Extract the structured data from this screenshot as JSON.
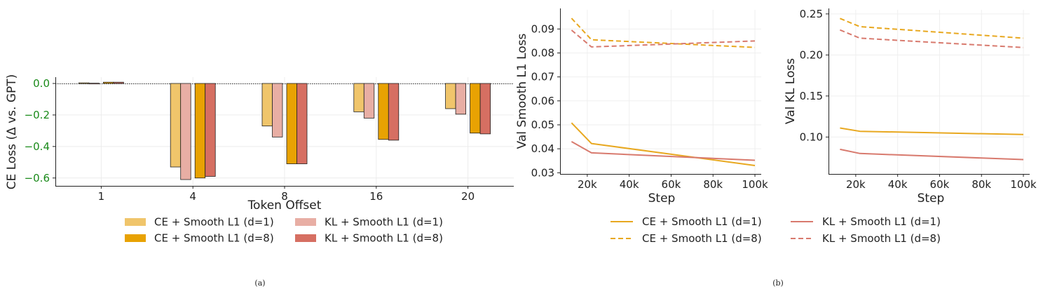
{
  "chart_data": [
    {
      "type": "bar",
      "caption": "(a)",
      "xlabel": "Token Offset",
      "ylabel": "CE Loss (Δ vs. GPT)",
      "categories": [
        "1",
        "4",
        "8",
        "16",
        "20"
      ],
      "ylim": [
        -0.65,
        0.04
      ],
      "yticks": [
        0.0,
        -0.2,
        -0.4,
        -0.6
      ],
      "ytick_labels": [
        "0.0",
        "−0.2",
        "−0.4",
        "−0.6"
      ],
      "reference_line": 0,
      "grid": true,
      "legend_position": "bottom",
      "series": [
        {
          "name": "CE + Smooth L1 (d=1)",
          "color": "#f0c56b",
          "values": [
            0.004,
            -0.53,
            -0.27,
            -0.18,
            -0.16
          ]
        },
        {
          "name": "KL + Smooth L1 (d=1)",
          "color": "#e8aea4",
          "values": [
            0.002,
            -0.61,
            -0.34,
            -0.22,
            -0.195
          ]
        },
        {
          "name": "CE + Smooth L1 (d=8)",
          "color": "#e8a203",
          "values": [
            0.008,
            -0.6,
            -0.51,
            -0.355,
            -0.315
          ]
        },
        {
          "name": "KL + Smooth L1 (d=8)",
          "color": "#d66f62",
          "values": [
            0.008,
            -0.59,
            -0.51,
            -0.36,
            -0.32
          ]
        }
      ]
    },
    {
      "type": "line",
      "caption": "(b)",
      "panels": [
        {
          "xlabel": "Step",
          "ylabel": "Val Smooth L1 Loss",
          "xlim": [
            7000,
            103000
          ],
          "ylim": [
            0.0295,
            0.098
          ],
          "xticks": [
            20000,
            40000,
            60000,
            80000,
            100000
          ],
          "xtick_labels": [
            "20k",
            "40k",
            "60k",
            "80k",
            "100k"
          ],
          "yticks": [
            0.03,
            0.04,
            0.05,
            0.06,
            0.07,
            0.08,
            0.09
          ],
          "ytick_labels": [
            "0.03",
            "0.04",
            "0.05",
            "0.06",
            "0.07",
            "0.08",
            "0.09"
          ],
          "grid": true,
          "series": [
            {
              "name": "CE + Smooth L1 (d=1)",
              "color": "#e8a820",
              "dash": false,
              "x": [
                12500,
                22000,
                100000
              ],
              "y": [
                0.0508,
                0.0422,
                0.033
              ]
            },
            {
              "name": "KL + Smooth L1 (d=1)",
              "color": "#d87a6e",
              "dash": false,
              "x": [
                12500,
                22000,
                100000
              ],
              "y": [
                0.043,
                0.0383,
                0.0352
              ]
            },
            {
              "name": "CE + Smooth L1 (d=8)",
              "color": "#e8a820",
              "dash": true,
              "x": [
                12500,
                22000,
                100000
              ],
              "y": [
                0.0945,
                0.0855,
                0.0823
              ]
            },
            {
              "name": "KL + Smooth L1 (d=8)",
              "color": "#d87a6e",
              "dash": true,
              "x": [
                12500,
                22000,
                100000
              ],
              "y": [
                0.0895,
                0.0825,
                0.085
              ]
            }
          ]
        },
        {
          "xlabel": "Step",
          "ylabel": "Val KL Loss",
          "xlim": [
            7000,
            103000
          ],
          "ylim": [
            0.055,
            0.255
          ],
          "xticks": [
            20000,
            40000,
            60000,
            80000,
            100000
          ],
          "xtick_labels": [
            "20k",
            "40k",
            "60k",
            "80k",
            "100k"
          ],
          "yticks": [
            0.1,
            0.15,
            0.2,
            0.25
          ],
          "ytick_labels": [
            "0.10",
            "0.15",
            "0.20",
            "0.25"
          ],
          "grid": true,
          "series": [
            {
              "name": "CE + Smooth L1 (d=1)",
              "color": "#e8a820",
              "dash": false,
              "x": [
                12500,
                22000,
                100000
              ],
              "y": [
                0.111,
                0.107,
                0.103
              ]
            },
            {
              "name": "KL + Smooth L1 (d=1)",
              "color": "#d87a6e",
              "dash": false,
              "x": [
                12500,
                22000,
                100000
              ],
              "y": [
                0.085,
                0.08,
                0.0725
              ]
            },
            {
              "name": "CE + Smooth L1 (d=8)",
              "color": "#e8a820",
              "dash": true,
              "x": [
                12500,
                22000,
                100000
              ],
              "y": [
                0.2445,
                0.2345,
                0.2205
              ]
            },
            {
              "name": "KL + Smooth L1 (d=8)",
              "color": "#d87a6e",
              "dash": true,
              "x": [
                12500,
                22000,
                100000
              ],
              "y": [
                0.2305,
                0.2205,
                0.209
              ]
            }
          ]
        }
      ],
      "legend_position": "bottom",
      "legend": [
        {
          "name": "CE + Smooth L1 (d=1)",
          "color": "#e8a820",
          "dash": false
        },
        {
          "name": "KL + Smooth L1 (d=1)",
          "color": "#d87a6e",
          "dash": false
        },
        {
          "name": "CE + Smooth L1 (d=8)",
          "color": "#e8a820",
          "dash": true
        },
        {
          "name": "KL + Smooth L1 (d=8)",
          "color": "#d87a6e",
          "dash": true
        }
      ]
    }
  ]
}
